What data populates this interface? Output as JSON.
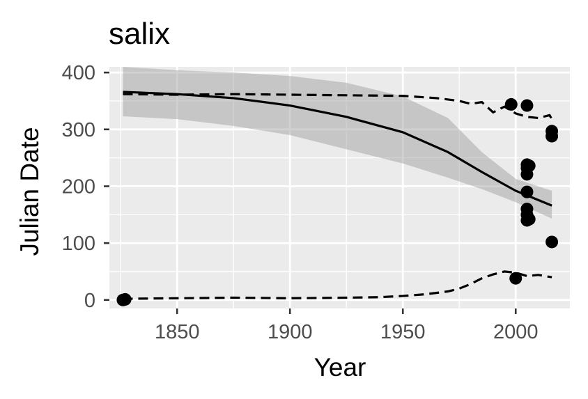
{
  "chart_data": {
    "type": "scatter",
    "title": "salix",
    "xlabel": "Year",
    "ylabel": "Julian Date",
    "xlim": [
      1820,
      2024
    ],
    "ylim": [
      -15,
      410
    ],
    "x_ticks": [
      1850,
      1900,
      1950,
      2000
    ],
    "y_ticks": [
      0,
      100,
      200,
      300,
      400
    ],
    "grid": true,
    "points": [
      {
        "x": 1826,
        "y": 0
      },
      {
        "x": 1827,
        "y": 1
      },
      {
        "x": 1998,
        "y": 344
      },
      {
        "x": 2000,
        "y": 38
      },
      {
        "x": 2005,
        "y": 342
      },
      {
        "x": 2005,
        "y": 238
      },
      {
        "x": 2005,
        "y": 232
      },
      {
        "x": 2005,
        "y": 221
      },
      {
        "x": 2005,
        "y": 190
      },
      {
        "x": 2005,
        "y": 160
      },
      {
        "x": 2005,
        "y": 150
      },
      {
        "x": 2005,
        "y": 140
      },
      {
        "x": 2006,
        "y": 236
      },
      {
        "x": 2006,
        "y": 142
      },
      {
        "x": 2016,
        "y": 297
      },
      {
        "x": 2016,
        "y": 288
      },
      {
        "x": 2016,
        "y": 102
      }
    ],
    "fit_line": {
      "x": [
        1826,
        1850,
        1875,
        1900,
        1925,
        1950,
        1970,
        1985,
        2000,
        2016
      ],
      "y": [
        366,
        362,
        355,
        342,
        322,
        295,
        260,
        225,
        192,
        166
      ]
    },
    "confidence_band": {
      "x": [
        1826,
        1850,
        1875,
        1900,
        1925,
        1950,
        1970,
        1985,
        2000,
        2016
      ],
      "lower": [
        323,
        318,
        306,
        290,
        265,
        240,
        215,
        195,
        172,
        143
      ],
      "upper": [
        410,
        404,
        400,
        394,
        382,
        358,
        320,
        260,
        213,
        192
      ]
    },
    "upper_dashed": {
      "x": [
        1826,
        1850,
        1875,
        1900,
        1925,
        1950,
        1965,
        1975,
        1980,
        1985,
        1990,
        1995,
        2000,
        2005,
        2010,
        2015,
        2016
      ],
      "y": [
        362,
        361,
        362,
        361,
        360,
        359,
        355,
        350,
        345,
        348,
        330,
        340,
        328,
        322,
        320,
        325,
        318
      ]
    },
    "lower_dashed": {
      "x": [
        1826,
        1850,
        1875,
        1900,
        1925,
        1940,
        1950,
        1960,
        1970,
        1975,
        1980,
        1985,
        1990,
        1995,
        2000,
        2005,
        2010,
        2016
      ],
      "y": [
        2,
        3,
        4,
        3,
        4,
        5,
        7,
        10,
        15,
        20,
        28,
        38,
        45,
        50,
        48,
        42,
        44,
        40
      ]
    }
  }
}
